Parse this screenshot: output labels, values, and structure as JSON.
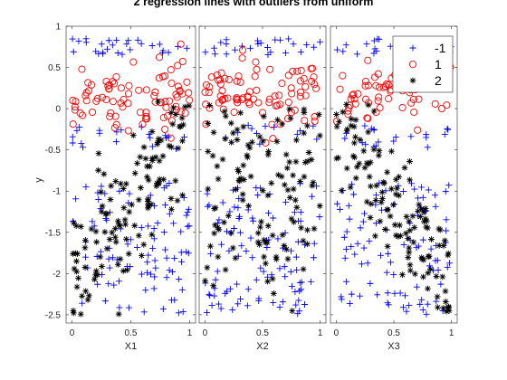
{
  "chart_data": {
    "type": "scatter",
    "title": "2 regression lines with outliers from uniform",
    "ylabel": "y",
    "panels": [
      {
        "xlabel": "X1",
        "xlim": [
          0,
          1
        ],
        "xticks": [
          "0",
          "0.5",
          "1"
        ]
      },
      {
        "xlabel": "X2",
        "xlim": [
          0,
          1
        ],
        "xticks": [
          "0",
          "0.5",
          "1"
        ]
      },
      {
        "xlabel": "X3",
        "xlim": [
          0,
          1
        ],
        "xticks": [
          "0",
          "0.5",
          "1"
        ]
      }
    ],
    "ylim": [
      -2.6,
      1.0
    ],
    "yticks": [
      "1",
      "0.5",
      "0",
      "-0.5",
      "-1",
      "-1.5",
      "-2",
      "-2.5"
    ],
    "ytick_values": [
      1,
      0.5,
      0,
      -0.5,
      -1,
      -1.5,
      -2,
      -2.5
    ],
    "grid": false,
    "legend_position": "top-right",
    "series": [
      {
        "name": "-1",
        "marker": "plus",
        "color": "#0000ff",
        "description_count": 300
      },
      {
        "name": "1",
        "marker": "circle",
        "color": "#ff0000",
        "description_count": 200
      },
      {
        "name": "2",
        "marker": "asterisk",
        "color": "#000000",
        "description_count": 300
      }
    ],
    "series_models": [
      {
        "name": "-1",
        "y_uniform": [
          -2.5,
          1.0
        ],
        "x_uniform": [
          0,
          1
        ],
        "note_dense_ranges": [
          [
            0.75,
            0.85
          ],
          [
            -0.55,
            -0.35
          ],
          [
            -2.5,
            -1.0
          ]
        ]
      },
      {
        "name": "1",
        "y_range": [
          -0.45,
          0.9
        ],
        "x_uniform": [
          0,
          1
        ]
      },
      {
        "name": "2",
        "y_range": [
          -2.5,
          0.1
        ],
        "x_uniform": [
          0,
          1
        ]
      }
    ]
  }
}
